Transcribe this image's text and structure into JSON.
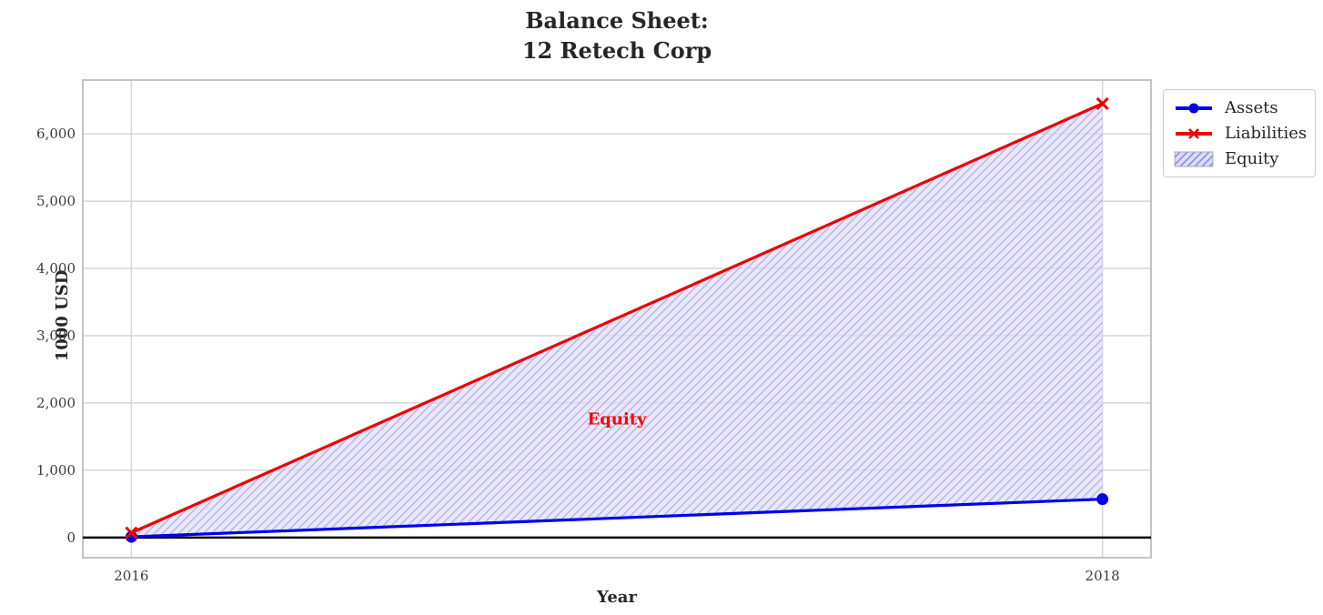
{
  "title": {
    "line1": "Balance Sheet:",
    "line2": "12 Retech Corp"
  },
  "chart_data": {
    "type": "line",
    "x": [
      2016,
      2018
    ],
    "series": [
      {
        "name": "Assets",
        "type": "line",
        "values": [
          10,
          570
        ],
        "color": "#0000ee",
        "marker": "circle"
      },
      {
        "name": "Liabilities",
        "type": "line",
        "values": [
          70,
          6450
        ],
        "color": "#ee0000",
        "marker": "x"
      },
      {
        "name": "Equity",
        "type": "area-between",
        "between": [
          "Assets",
          "Liabilities"
        ],
        "values": [
          -60,
          -5880
        ],
        "fill": "#dcdcf7",
        "fill_opacity": 0.65,
        "hatch": "/",
        "hatch_color": "#b4b4ea",
        "edge_color": "#9a9ae0"
      }
    ],
    "title": "Balance Sheet:\n12 Retech Corp",
    "xlabel": "Year",
    "ylabel": "1000 USD",
    "xticks": [
      2016,
      2018
    ],
    "xtick_labels": [
      "2016",
      "2018"
    ],
    "yticks": [
      0,
      1000,
      2000,
      3000,
      4000,
      5000,
      6000
    ],
    "ytick_labels": [
      "0",
      "1,000",
      "2,000",
      "3,000",
      "4,000",
      "5,000",
      "6,000"
    ],
    "xlim": [
      2015.9,
      2018.1
    ],
    "ylim": [
      -300,
      6800
    ],
    "grid": true,
    "grid_color": "#d6d6d6",
    "frame_color": "#c4c4c4",
    "zero_line": {
      "y": 0,
      "color": "#000000"
    },
    "annotation": {
      "text": "Equity",
      "x": 2017,
      "y": 1750,
      "color": "#ff0000"
    },
    "legend": {
      "position": "outside-upper-right",
      "entries": [
        "Assets",
        "Liabilities",
        "Equity"
      ]
    }
  }
}
